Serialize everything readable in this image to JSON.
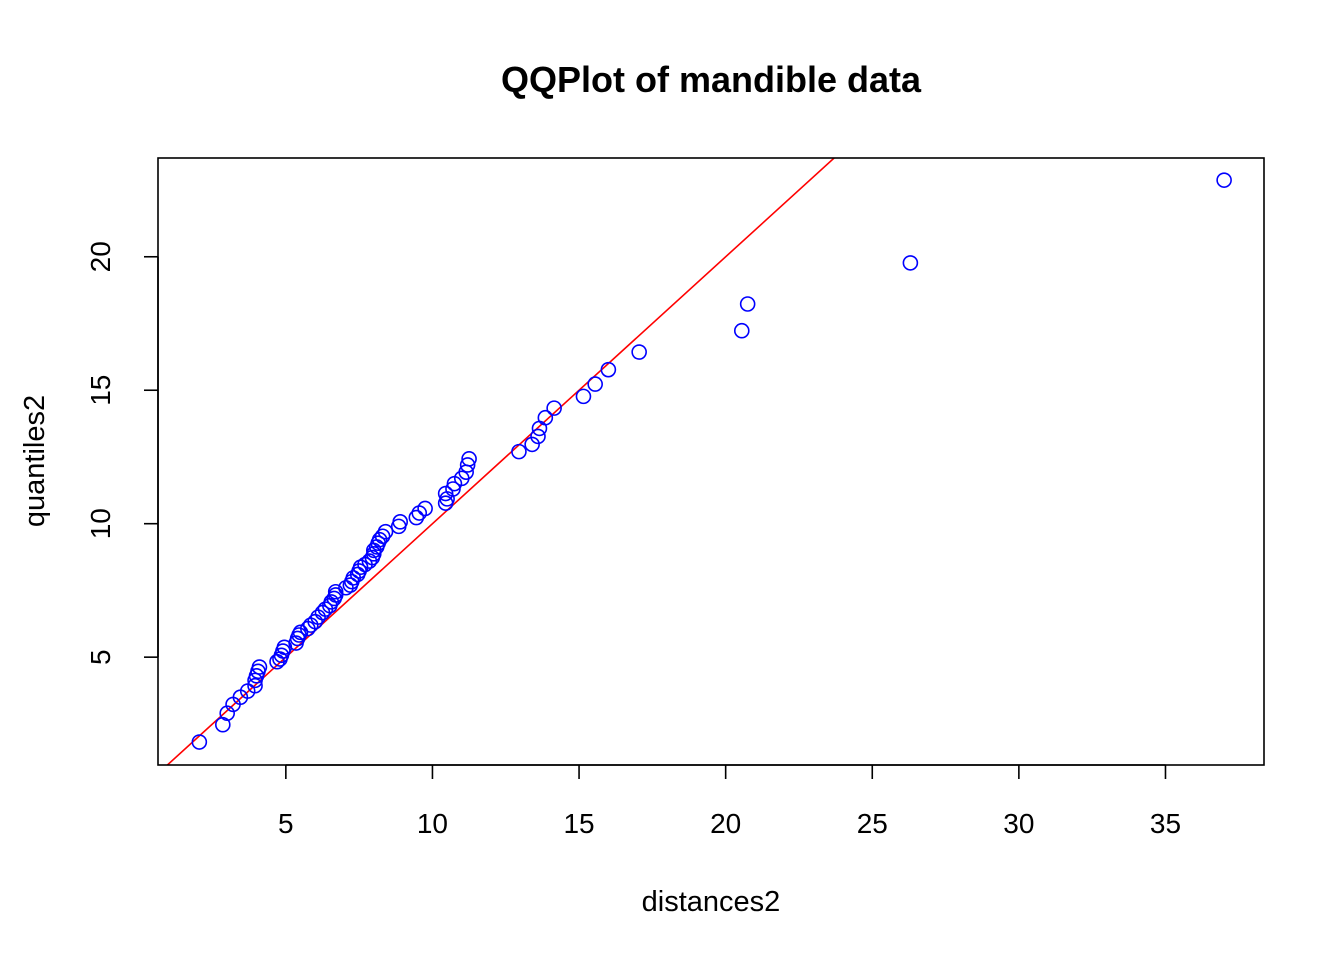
{
  "chart_data": {
    "type": "scatter",
    "title": "QQPlot of mandible data",
    "xlabel": "distances2",
    "ylabel": "quantiles2",
    "xlim": [
      0.64,
      38.36
    ],
    "ylim": [
      0.96,
      23.7
    ],
    "xticks": [
      5,
      10,
      15,
      20,
      25,
      30,
      35
    ],
    "yticks": [
      5,
      10,
      15,
      20
    ],
    "grid": false,
    "legend": "none",
    "point_color": "#0000ff",
    "line_color": "#ff0000",
    "reference_line": {
      "intercept": 0,
      "slope": 1
    },
    "points": [
      [
        2.05,
        1.82
      ],
      [
        2.85,
        2.47
      ],
      [
        3.0,
        2.9
      ],
      [
        3.2,
        3.23
      ],
      [
        3.45,
        3.5
      ],
      [
        3.7,
        3.73
      ],
      [
        3.95,
        3.93
      ],
      [
        3.95,
        4.13
      ],
      [
        4.0,
        4.3
      ],
      [
        4.05,
        4.47
      ],
      [
        4.1,
        4.63
      ],
      [
        4.7,
        4.83
      ],
      [
        4.8,
        4.93
      ],
      [
        4.85,
        5.07
      ],
      [
        4.9,
        5.23
      ],
      [
        4.95,
        5.37
      ],
      [
        5.35,
        5.53
      ],
      [
        5.4,
        5.7
      ],
      [
        5.45,
        5.83
      ],
      [
        5.5,
        5.93
      ],
      [
        5.75,
        6.07
      ],
      [
        5.85,
        6.2
      ],
      [
        6.0,
        6.33
      ],
      [
        6.1,
        6.5
      ],
      [
        6.25,
        6.67
      ],
      [
        6.35,
        6.8
      ],
      [
        6.5,
        6.93
      ],
      [
        6.55,
        7.07
      ],
      [
        6.65,
        7.2
      ],
      [
        6.7,
        7.33
      ],
      [
        6.7,
        7.45
      ],
      [
        7.05,
        7.6
      ],
      [
        7.2,
        7.7
      ],
      [
        7.25,
        7.83
      ],
      [
        7.3,
        7.97
      ],
      [
        7.45,
        8.1
      ],
      [
        7.5,
        8.23
      ],
      [
        7.55,
        8.37
      ],
      [
        7.7,
        8.47
      ],
      [
        7.85,
        8.6
      ],
      [
        7.95,
        8.73
      ],
      [
        8.0,
        8.87
      ],
      [
        8.0,
        9.0
      ],
      [
        8.1,
        9.13
      ],
      [
        8.15,
        9.27
      ],
      [
        8.2,
        9.4
      ],
      [
        8.3,
        9.53
      ],
      [
        8.4,
        9.7
      ],
      [
        8.85,
        9.9
      ],
      [
        8.9,
        10.07
      ],
      [
        9.45,
        10.23
      ],
      [
        9.55,
        10.4
      ],
      [
        9.75,
        10.57
      ],
      [
        10.45,
        10.77
      ],
      [
        10.5,
        10.93
      ],
      [
        10.45,
        11.13
      ],
      [
        10.7,
        11.3
      ],
      [
        10.75,
        11.5
      ],
      [
        11.0,
        11.7
      ],
      [
        11.15,
        11.93
      ],
      [
        11.2,
        12.2
      ],
      [
        11.25,
        12.43
      ],
      [
        12.95,
        12.7
      ],
      [
        13.4,
        12.97
      ],
      [
        13.6,
        13.27
      ],
      [
        13.65,
        13.57
      ],
      [
        13.85,
        13.97
      ],
      [
        14.15,
        14.33
      ],
      [
        15.15,
        14.77
      ],
      [
        15.55,
        15.23
      ],
      [
        16.0,
        15.77
      ],
      [
        17.05,
        16.43
      ],
      [
        20.55,
        17.23
      ],
      [
        20.75,
        18.23
      ],
      [
        26.3,
        19.77
      ],
      [
        37.0,
        22.87
      ]
    ]
  }
}
